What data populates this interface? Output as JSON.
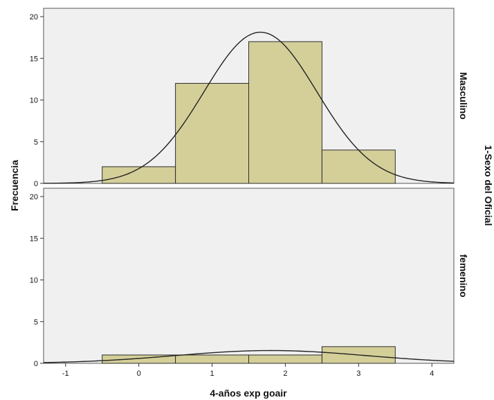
{
  "chart_data": {
    "type": "bar",
    "subtype": "histogram-panels-with-normal-curve",
    "xlabel": "4-años exp goair",
    "ylabel": "Frecuencia",
    "panel_axis_label": "1-Sexo del Oficial",
    "xlim": [
      -1.3,
      4.3
    ],
    "ylim": [
      0,
      21
    ],
    "x_ticks": [
      -1,
      0,
      1,
      2,
      3,
      4
    ],
    "y_ticks": [
      0,
      5,
      10,
      15,
      20
    ],
    "bin_width": 1,
    "bin_centers": [
      0,
      1,
      2,
      3
    ],
    "panels": [
      {
        "name": "Masculino",
        "values": [
          2,
          12,
          17,
          4
        ],
        "normal_curve": {
          "mean": 1.66,
          "sd": 0.77,
          "n": 35
        }
      },
      {
        "name": "femenino",
        "values": [
          1,
          1,
          1,
          2
        ],
        "normal_curve": {
          "mean": 1.8,
          "sd": 1.3,
          "n": 5
        }
      }
    ],
    "colors": {
      "bar_fill": "#d4cf99",
      "bar_stroke": "#2b2b2b",
      "panel_bg": "#f0f0f0",
      "curve": "#222222"
    },
    "grid": false
  }
}
